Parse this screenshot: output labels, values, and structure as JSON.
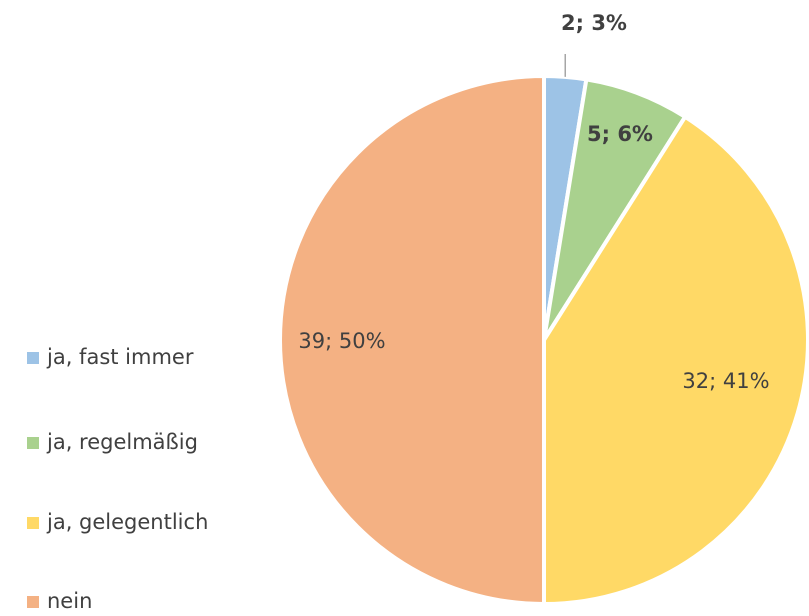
{
  "chart_data": {
    "type": "pie",
    "categories": [
      "ja, fast immer",
      "ja, regelmäßig",
      "ja, gelegentlich",
      "nein"
    ],
    "values": [
      2,
      5,
      32,
      39
    ],
    "value_labels": [
      "2; 3%",
      "5; 6%",
      "32; 41%",
      "39; 50%"
    ],
    "colors": [
      "#9dc3e6",
      "#a9d18e",
      "#ffd966",
      "#f4b183"
    ],
    "legend": "left"
  }
}
